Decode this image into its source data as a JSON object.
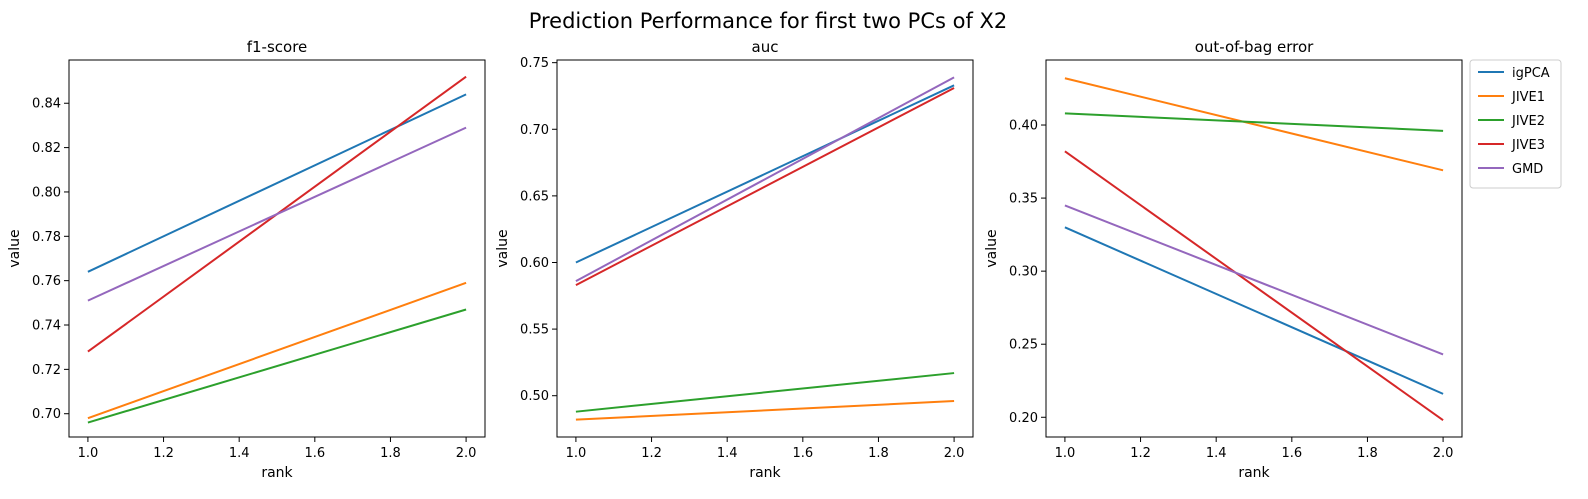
{
  "figure": {
    "title": "Prediction Performance for first two PCs of X2"
  },
  "legend": {
    "placement": "outside-right"
  },
  "chart_data": [
    {
      "type": "line",
      "title": "f1-score",
      "xlabel": "rank",
      "ylabel": "value",
      "xlim": [
        0.95,
        2.05
      ],
      "ylim": [
        0.6895,
        0.8595
      ],
      "xticks": [
        1.0,
        1.2,
        1.4,
        1.6,
        1.8,
        2.0
      ],
      "xtick_labels": [
        "1.0",
        "1.2",
        "1.4",
        "1.6",
        "1.8",
        "2.0"
      ],
      "yticks": [
        0.7,
        0.72,
        0.74,
        0.76,
        0.78,
        0.8,
        0.82,
        0.84
      ],
      "ytick_labels": [
        "0.70",
        "0.72",
        "0.74",
        "0.76",
        "0.78",
        "0.80",
        "0.82",
        "0.84"
      ],
      "grid": false,
      "x": [
        1.0,
        2.0
      ],
      "series": [
        {
          "name": "igPCA",
          "color": "#1f77b4",
          "values": [
            0.764,
            0.844
          ]
        },
        {
          "name": "JIVE1",
          "color": "#ff7f0e",
          "values": [
            0.698,
            0.759
          ]
        },
        {
          "name": "JIVE2",
          "color": "#2ca02c",
          "values": [
            0.696,
            0.747
          ]
        },
        {
          "name": "JIVE3",
          "color": "#d62728",
          "values": [
            0.728,
            0.852
          ]
        },
        {
          "name": "GMD",
          "color": "#9467bd",
          "values": [
            0.751,
            0.829
          ]
        }
      ]
    },
    {
      "type": "line",
      "title": "auc",
      "xlabel": "rank",
      "ylabel": "value",
      "xlim": [
        0.95,
        2.05
      ],
      "ylim": [
        0.469,
        0.752
      ],
      "xticks": [
        1.0,
        1.2,
        1.4,
        1.6,
        1.8,
        2.0
      ],
      "xtick_labels": [
        "1.0",
        "1.2",
        "1.4",
        "1.6",
        "1.8",
        "2.0"
      ],
      "yticks": [
        0.5,
        0.55,
        0.6,
        0.65,
        0.7,
        0.75
      ],
      "ytick_labels": [
        "0.50",
        "0.55",
        "0.60",
        "0.65",
        "0.70",
        "0.75"
      ],
      "grid": false,
      "x": [
        1.0,
        2.0
      ],
      "series": [
        {
          "name": "igPCA",
          "color": "#1f77b4",
          "values": [
            0.6,
            0.733
          ]
        },
        {
          "name": "JIVE1",
          "color": "#ff7f0e",
          "values": [
            0.482,
            0.496
          ]
        },
        {
          "name": "JIVE2",
          "color": "#2ca02c",
          "values": [
            0.488,
            0.517
          ]
        },
        {
          "name": "JIVE3",
          "color": "#d62728",
          "values": [
            0.583,
            0.731
          ]
        },
        {
          "name": "GMD",
          "color": "#9467bd",
          "values": [
            0.586,
            0.739
          ]
        }
      ]
    },
    {
      "type": "line",
      "title": "out-of-bag error",
      "xlabel": "rank",
      "ylabel": "value",
      "xlim": [
        0.95,
        2.05
      ],
      "ylim": [
        0.1865,
        0.4445
      ],
      "xticks": [
        1.0,
        1.2,
        1.4,
        1.6,
        1.8,
        2.0
      ],
      "xtick_labels": [
        "1.0",
        "1.2",
        "1.4",
        "1.6",
        "1.8",
        "2.0"
      ],
      "yticks": [
        0.2,
        0.25,
        0.3,
        0.35,
        0.4
      ],
      "ytick_labels": [
        "0.20",
        "0.25",
        "0.30",
        "0.35",
        "0.40"
      ],
      "grid": false,
      "x": [
        1.0,
        2.0
      ],
      "series": [
        {
          "name": "igPCA",
          "color": "#1f77b4",
          "values": [
            0.33,
            0.216
          ]
        },
        {
          "name": "JIVE1",
          "color": "#ff7f0e",
          "values": [
            0.432,
            0.369
          ]
        },
        {
          "name": "JIVE2",
          "color": "#2ca02c",
          "values": [
            0.408,
            0.396
          ]
        },
        {
          "name": "JIVE3",
          "color": "#d62728",
          "values": [
            0.382,
            0.198
          ]
        },
        {
          "name": "GMD",
          "color": "#9467bd",
          "values": [
            0.345,
            0.243
          ]
        }
      ]
    }
  ]
}
